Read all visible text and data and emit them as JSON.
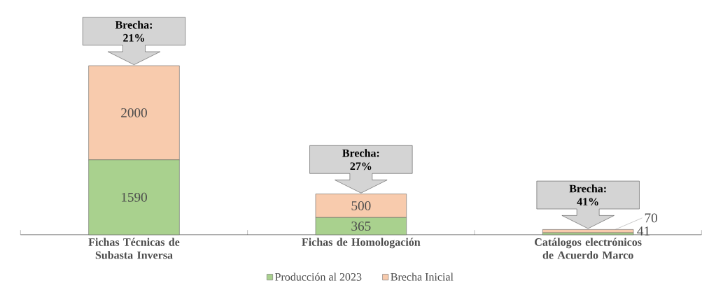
{
  "chart_data": {
    "type": "bar",
    "stacked": true,
    "data_labels": true,
    "legend": "bottom",
    "categories": [
      "Fichas Técnicas de Subasta Inversa",
      "Fichas de Homologación",
      "Catálogos electrónicos de Acuerdo Marco"
    ],
    "series": [
      {
        "name": "Producción al 2023",
        "color": "#a9d18e",
        "values": [
          1590,
          365,
          41
        ]
      },
      {
        "name": "Brecha Inicial",
        "color": "#f8cbad",
        "values": [
          2000,
          500,
          70
        ]
      }
    ],
    "annotations": [
      "Brecha: 21%",
      "Brecha: 27%",
      "Brecha: 41%"
    ]
  }
}
